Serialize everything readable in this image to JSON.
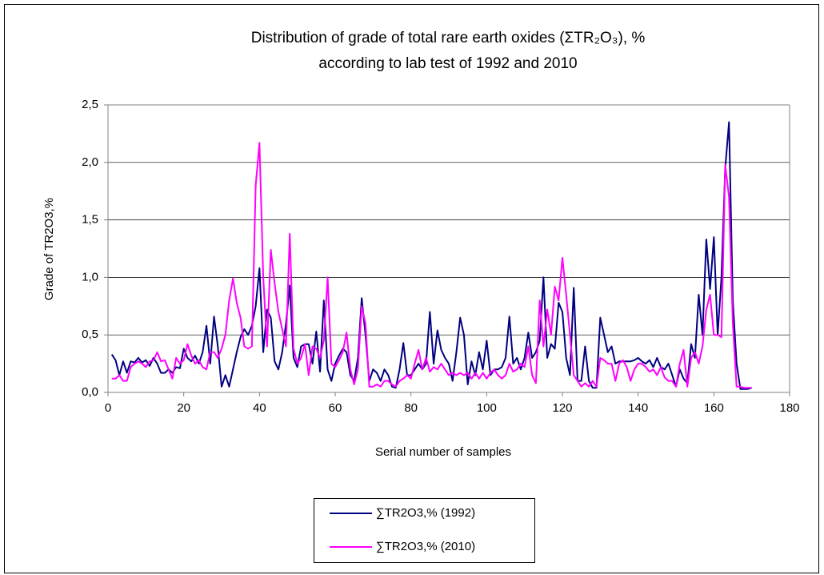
{
  "chart_data": {
    "type": "line",
    "title": "Distribution of grade of total rare earth oxides (ΣTR₂O₃), %",
    "subtitle": "according to lab test of 1992 and 2010",
    "x_label": "Serial number of samples",
    "y_label": "Grade of TR2O3,%",
    "xlim": [
      0,
      180
    ],
    "xticks": [
      0,
      20,
      40,
      60,
      80,
      100,
      120,
      140,
      160,
      180
    ],
    "ylim": [
      0,
      2.5
    ],
    "yticks": [
      {
        "value": 0,
        "label": "0,0"
      },
      {
        "value": 0.5,
        "label": "0,5"
      },
      {
        "value": 1,
        "label": "1,0"
      },
      {
        "value": 1.5,
        "label": "1,5"
      },
      {
        "value": 2,
        "label": "2,0"
      },
      {
        "value": 2.5,
        "label": "2,5"
      }
    ],
    "grid": true,
    "legend": "bottom",
    "x": [
      1,
      2,
      3,
      4,
      5,
      6,
      7,
      8,
      9,
      10,
      11,
      12,
      13,
      14,
      15,
      16,
      17,
      18,
      19,
      20,
      21,
      22,
      23,
      24,
      25,
      26,
      27,
      28,
      29,
      30,
      31,
      32,
      33,
      34,
      35,
      36,
      37,
      38,
      39,
      40,
      41,
      42,
      43,
      44,
      45,
      46,
      47,
      48,
      49,
      50,
      51,
      52,
      53,
      54,
      55,
      56,
      57,
      58,
      59,
      60,
      61,
      62,
      63,
      64,
      65,
      66,
      67,
      68,
      69,
      70,
      71,
      72,
      73,
      74,
      75,
      76,
      77,
      78,
      79,
      80,
      81,
      82,
      83,
      84,
      85,
      86,
      87,
      88,
      89,
      90,
      91,
      92,
      93,
      94,
      95,
      96,
      97,
      98,
      99,
      100,
      101,
      102,
      103,
      104,
      105,
      106,
      107,
      108,
      109,
      110,
      111,
      112,
      113,
      114,
      115,
      116,
      117,
      118,
      119,
      120,
      121,
      122,
      123,
      124,
      125,
      126,
      127,
      128,
      129,
      130,
      131,
      132,
      133,
      134,
      135,
      136,
      137,
      138,
      139,
      140,
      141,
      142,
      143,
      144,
      145,
      146,
      147,
      148,
      149,
      150,
      151,
      152,
      153,
      154,
      155,
      156,
      157,
      158,
      159,
      160,
      161,
      162,
      163,
      164,
      165,
      166,
      167,
      168,
      169,
      170
    ],
    "series": [
      {
        "name": "∑TR2O3,% (1992)",
        "color": "#000080",
        "values": [
          0.33,
          0.28,
          0.15,
          0.27,
          0.17,
          0.27,
          0.26,
          0.3,
          0.26,
          0.28,
          0.23,
          0.3,
          0.25,
          0.17,
          0.17,
          0.2,
          0.17,
          0.22,
          0.21,
          0.38,
          0.3,
          0.27,
          0.32,
          0.25,
          0.35,
          0.58,
          0.25,
          0.66,
          0.4,
          0.05,
          0.15,
          0.05,
          0.2,
          0.35,
          0.48,
          0.55,
          0.5,
          0.58,
          0.75,
          1.08,
          0.35,
          0.72,
          0.65,
          0.27,
          0.2,
          0.35,
          0.6,
          0.93,
          0.3,
          0.22,
          0.4,
          0.42,
          0.42,
          0.25,
          0.53,
          0.18,
          0.8,
          0.2,
          0.1,
          0.25,
          0.32,
          0.38,
          0.35,
          0.15,
          0.1,
          0.3,
          0.82,
          0.5,
          0.1,
          0.2,
          0.17,
          0.1,
          0.2,
          0.15,
          0.05,
          0.04,
          0.2,
          0.43,
          0.15,
          0.15,
          0.2,
          0.25,
          0.2,
          0.25,
          0.7,
          0.25,
          0.54,
          0.37,
          0.3,
          0.25,
          0.1,
          0.35,
          0.65,
          0.5,
          0.07,
          0.27,
          0.15,
          0.35,
          0.2,
          0.45,
          0.15,
          0.2,
          0.2,
          0.22,
          0.3,
          0.66,
          0.25,
          0.3,
          0.2,
          0.3,
          0.52,
          0.3,
          0.35,
          0.45,
          1.0,
          0.3,
          0.42,
          0.38,
          0.78,
          0.7,
          0.3,
          0.15,
          0.91,
          0.1,
          0.1,
          0.4,
          0.1,
          0.04,
          0.04,
          0.65,
          0.5,
          0.35,
          0.4,
          0.25,
          0.27,
          0.27,
          0.27,
          0.27,
          0.28,
          0.3,
          0.27,
          0.25,
          0.28,
          0.22,
          0.3,
          0.22,
          0.2,
          0.25,
          0.15,
          0.05,
          0.2,
          0.12,
          0.08,
          0.42,
          0.3,
          0.85,
          0.5,
          1.33,
          0.9,
          1.35,
          0.5,
          1.0,
          1.95,
          2.35,
          0.8,
          0.25,
          0.03,
          0.03,
          0.03,
          0.04
        ]
      },
      {
        "name": "∑TR2O3,% (2010)",
        "color": "#ff00ff",
        "values": [
          0.12,
          0.12,
          0.15,
          0.1,
          0.1,
          0.22,
          0.25,
          0.27,
          0.25,
          0.22,
          0.27,
          0.28,
          0.35,
          0.27,
          0.28,
          0.2,
          0.12,
          0.3,
          0.25,
          0.28,
          0.42,
          0.32,
          0.25,
          0.28,
          0.22,
          0.2,
          0.35,
          0.35,
          0.3,
          0.38,
          0.5,
          0.8,
          0.99,
          0.78,
          0.65,
          0.4,
          0.38,
          0.4,
          1.8,
          2.17,
          1.0,
          0.4,
          1.24,
          0.95,
          0.7,
          0.55,
          0.4,
          1.38,
          0.38,
          0.25,
          0.3,
          0.42,
          0.15,
          0.4,
          0.38,
          0.3,
          0.45,
          1.0,
          0.25,
          0.22,
          0.28,
          0.35,
          0.52,
          0.2,
          0.07,
          0.2,
          0.75,
          0.6,
          0.05,
          0.05,
          0.07,
          0.05,
          0.1,
          0.1,
          0.07,
          0.05,
          0.1,
          0.12,
          0.15,
          0.12,
          0.25,
          0.37,
          0.2,
          0.3,
          0.18,
          0.22,
          0.2,
          0.25,
          0.2,
          0.15,
          0.17,
          0.15,
          0.17,
          0.15,
          0.17,
          0.12,
          0.17,
          0.12,
          0.17,
          0.12,
          0.17,
          0.2,
          0.15,
          0.12,
          0.15,
          0.25,
          0.18,
          0.2,
          0.25,
          0.22,
          0.4,
          0.15,
          0.08,
          0.8,
          0.4,
          0.72,
          0.5,
          0.92,
          0.8,
          1.17,
          0.85,
          0.5,
          0.15,
          0.1,
          0.05,
          0.08,
          0.05,
          0.1,
          0.05,
          0.3,
          0.28,
          0.25,
          0.25,
          0.1,
          0.25,
          0.28,
          0.22,
          0.1,
          0.2,
          0.25,
          0.25,
          0.22,
          0.18,
          0.2,
          0.15,
          0.22,
          0.13,
          0.1,
          0.1,
          0.05,
          0.25,
          0.37,
          0.05,
          0.3,
          0.35,
          0.25,
          0.4,
          0.72,
          0.85,
          0.5,
          0.5,
          0.48,
          1.98,
          1.7,
          0.6,
          0.05,
          0.05,
          0.04,
          0.04,
          0.04
        ]
      }
    ]
  }
}
